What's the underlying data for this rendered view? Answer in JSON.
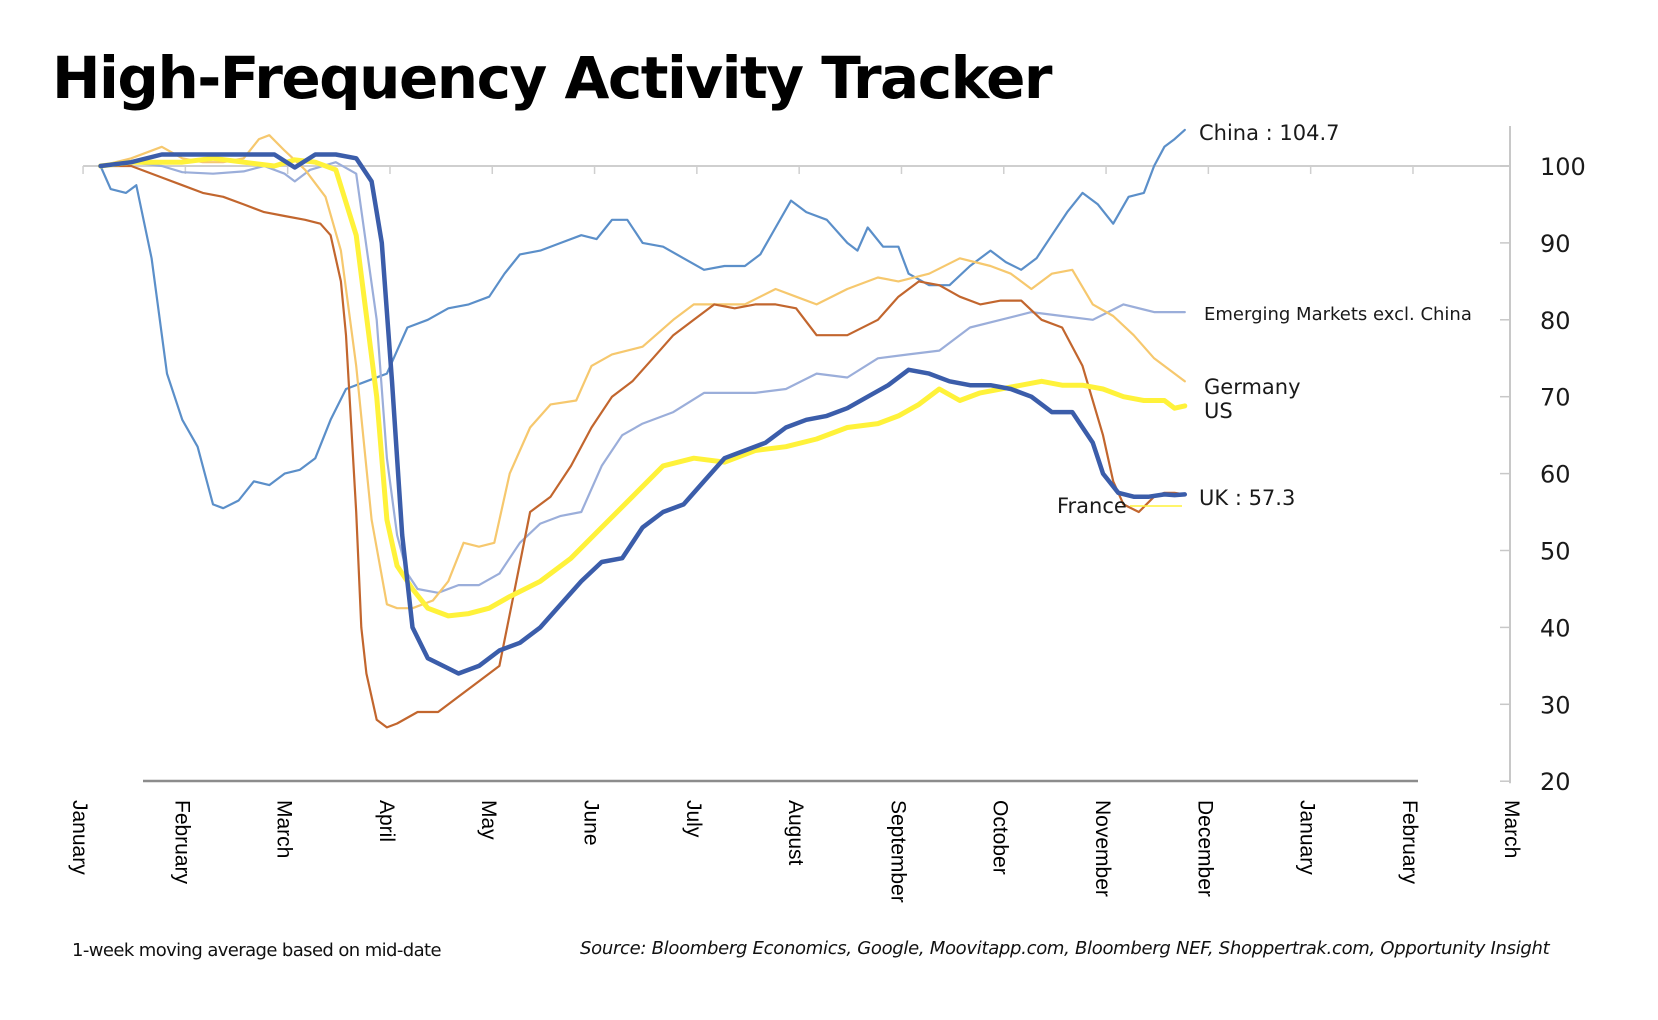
{
  "chart_data": {
    "type": "line",
    "title": "High-Frequency Activity Tracker",
    "xlabel": "",
    "ylabel": "",
    "x_unit": "months since start of January (0 = January)",
    "x_ticks": [
      "January",
      "February",
      "March",
      "April",
      "May",
      "June",
      "July",
      "August",
      "September",
      "October",
      "November",
      "December",
      "January",
      "February",
      "March"
    ],
    "xlim": [
      0,
      14
    ],
    "ylim": [
      20,
      100
    ],
    "y_ticks": [
      20,
      30,
      40,
      50,
      60,
      70,
      80,
      90,
      100
    ],
    "y_axis_position": "right",
    "baseline": 100,
    "grid": false,
    "legend": "inline-labels at line ends (right)",
    "series": [
      {
        "name": "China",
        "label": "China : 104.7",
        "color": "#5B8FC9",
        "width": 2.2,
        "x": [
          0.2,
          0.3,
          0.45,
          0.55,
          0.7,
          0.85,
          1.0,
          1.15,
          1.3,
          1.4,
          1.55,
          1.7,
          1.85,
          2.0,
          2.15,
          2.3,
          2.45,
          2.6,
          2.8,
          3.0,
          3.1,
          3.2,
          3.4,
          3.6,
          3.8,
          4.0,
          4.15,
          4.3,
          4.5,
          4.7,
          4.9,
          5.05,
          5.2,
          5.35,
          5.5,
          5.7,
          5.9,
          6.1,
          6.3,
          6.5,
          6.65,
          6.8,
          6.95,
          7.1,
          7.3,
          7.5,
          7.6,
          7.7,
          7.85,
          8.0,
          8.1,
          8.3,
          8.5,
          8.7,
          8.9,
          9.05,
          9.2,
          9.35,
          9.5,
          9.65,
          9.8,
          9.95,
          10.1,
          10.25,
          10.4,
          10.5,
          10.6,
          10.7,
          10.8
        ],
        "values": [
          100,
          97,
          96.5,
          97.5,
          88,
          73,
          67,
          63.5,
          56,
          55.5,
          56.5,
          59,
          58.5,
          60,
          60.5,
          62,
          67,
          71,
          72,
          73,
          76,
          79,
          80,
          81.5,
          82,
          83,
          86,
          88.5,
          89,
          90,
          91,
          90.5,
          93,
          93,
          90,
          89.5,
          88,
          86.5,
          87,
          87,
          88.5,
          92,
          95.5,
          94,
          93,
          90,
          89,
          92,
          89.5,
          89.5,
          86,
          84.5,
          84.5,
          87,
          89,
          87.5,
          86.5,
          88,
          91,
          94,
          96.5,
          95,
          92.5,
          96,
          96.5,
          100,
          102.5,
          103.5,
          104.7
        ]
      },
      {
        "name": "Emerging Markets excl. China",
        "label": "Emerging Markets excl. China",
        "color": "#9BAEDA",
        "width": 2.2,
        "x": [
          0.2,
          0.5,
          0.8,
          1.0,
          1.3,
          1.6,
          1.8,
          2.0,
          2.1,
          2.25,
          2.5,
          2.7,
          2.9,
          3.0,
          3.1,
          3.2,
          3.3,
          3.5,
          3.7,
          3.9,
          4.1,
          4.3,
          4.5,
          4.7,
          4.9,
          5.1,
          5.3,
          5.5,
          5.8,
          6.1,
          6.3,
          6.6,
          6.9,
          7.2,
          7.5,
          7.8,
          8.1,
          8.4,
          8.7,
          9.0,
          9.3,
          9.6,
          9.9,
          10.2,
          10.5,
          10.7,
          10.8
        ],
        "values": [
          100,
          100.5,
          100,
          99.2,
          99,
          99.3,
          100,
          99,
          98,
          99.5,
          100.5,
          99,
          80,
          62,
          52,
          47,
          45,
          44.5,
          45.5,
          45.5,
          47,
          51,
          53.5,
          54.5,
          55,
          61,
          65,
          66.5,
          68,
          70.5,
          70.5,
          70.5,
          71,
          73,
          72.5,
          75,
          75.5,
          76,
          79,
          80,
          81,
          80.5,
          80,
          82,
          81,
          81,
          81
        ]
      },
      {
        "name": "Germany",
        "label": "Germany",
        "color": "#F6C86E",
        "width": 2.2,
        "x": [
          0.2,
          0.5,
          0.8,
          1.0,
          1.2,
          1.4,
          1.6,
          1.75,
          1.85,
          2.0,
          2.2,
          2.4,
          2.55,
          2.7,
          2.85,
          3.0,
          3.1,
          3.25,
          3.45,
          3.6,
          3.75,
          3.9,
          4.05,
          4.2,
          4.4,
          4.6,
          4.85,
          5.0,
          5.2,
          5.5,
          5.8,
          6.0,
          6.2,
          6.5,
          6.8,
          7.0,
          7.2,
          7.5,
          7.8,
          8.0,
          8.3,
          8.6,
          8.9,
          9.1,
          9.3,
          9.5,
          9.7,
          9.9,
          10.1,
          10.3,
          10.5,
          10.7,
          10.8
        ],
        "values": [
          100,
          101,
          102.5,
          101,
          100.5,
          100.5,
          101,
          103.5,
          104,
          102,
          99.5,
          96,
          89,
          74,
          54,
          43,
          42.5,
          42.5,
          43.5,
          46,
          51,
          50.5,
          51,
          60,
          66,
          69,
          69.5,
          74,
          75.5,
          76.5,
          80,
          82,
          82,
          82,
          84,
          83,
          82,
          84,
          85.5,
          85,
          86,
          88,
          87,
          86,
          84,
          86,
          86.5,
          82,
          80.5,
          78,
          75,
          73,
          72
        ]
      },
      {
        "name": "France",
        "label": "France",
        "color": "#C2662E",
        "width": 2.2,
        "x": [
          0.2,
          0.5,
          0.8,
          1.0,
          1.2,
          1.4,
          1.6,
          1.8,
          2.0,
          2.2,
          2.35,
          2.45,
          2.55,
          2.6,
          2.7,
          2.75,
          2.8,
          2.9,
          3.0,
          3.1,
          3.3,
          3.5,
          3.7,
          3.9,
          4.1,
          4.25,
          4.4,
          4.6,
          4.8,
          5.0,
          5.2,
          5.4,
          5.6,
          5.8,
          6.0,
          6.2,
          6.4,
          6.6,
          6.8,
          7.0,
          7.2,
          7.5,
          7.8,
          8.0,
          8.2,
          8.4,
          8.6,
          8.8,
          9.0,
          9.2,
          9.4,
          9.6,
          9.8,
          10.0,
          10.1,
          10.2,
          10.35,
          10.5,
          10.6,
          10.7,
          10.8
        ],
        "values": [
          100,
          100,
          98.5,
          97.5,
          96.5,
          96,
          95,
          94,
          93.5,
          93,
          92.5,
          91,
          85,
          78,
          55,
          40,
          34,
          28,
          27,
          27.5,
          29,
          29,
          31,
          33,
          35,
          45,
          55,
          57,
          61,
          66,
          70,
          72,
          75,
          78,
          80,
          82,
          81.5,
          82,
          82,
          81.5,
          78,
          78,
          80,
          83,
          85,
          84.5,
          83,
          82,
          82.5,
          82.5,
          80,
          79,
          74,
          65,
          59,
          56,
          55,
          57,
          57.5,
          57.5,
          57.3
        ]
      },
      {
        "name": "US",
        "label": "US",
        "color": "#FFF23A",
        "width": 5,
        "x": [
          0.2,
          0.5,
          0.8,
          1.0,
          1.3,
          1.6,
          1.9,
          2.1,
          2.3,
          2.5,
          2.7,
          2.9,
          3.0,
          3.1,
          3.25,
          3.4,
          3.6,
          3.8,
          4.0,
          4.2,
          4.5,
          4.8,
          5.1,
          5.4,
          5.7,
          6.0,
          6.3,
          6.6,
          6.9,
          7.2,
          7.5,
          7.8,
          8.0,
          8.2,
          8.4,
          8.6,
          8.8,
          9.0,
          9.2,
          9.4,
          9.6,
          9.8,
          10.0,
          10.2,
          10.4,
          10.6,
          10.7,
          10.8
        ],
        "values": [
          100,
          100.5,
          100.5,
          100.5,
          101,
          100.5,
          100,
          100.8,
          100.5,
          99.5,
          91,
          70,
          54,
          48,
          45,
          42.5,
          41.5,
          41.8,
          42.5,
          44,
          46,
          49,
          53,
          57,
          61,
          62,
          61.5,
          63,
          63.5,
          64.5,
          66,
          66.5,
          67.5,
          69,
          71,
          69.5,
          70.5,
          71,
          71.5,
          72,
          71.5,
          71.5,
          71,
          70,
          69.5,
          69.5,
          68.5,
          68.8
        ]
      },
      {
        "name": "UK",
        "label": "UK : 57.3",
        "color": "#3B5DAA",
        "width": 4.5,
        "x": [
          0.2,
          0.5,
          0.8,
          1.0,
          1.2,
          1.5,
          1.9,
          2.1,
          2.3,
          2.5,
          2.7,
          2.85,
          2.95,
          3.05,
          3.15,
          3.25,
          3.4,
          3.55,
          3.7,
          3.9,
          4.1,
          4.3,
          4.5,
          4.7,
          4.9,
          5.1,
          5.3,
          5.5,
          5.7,
          5.9,
          6.1,
          6.3,
          6.5,
          6.7,
          6.9,
          7.1,
          7.3,
          7.5,
          7.7,
          7.9,
          8.1,
          8.3,
          8.5,
          8.7,
          8.9,
          9.1,
          9.3,
          9.5,
          9.7,
          9.9,
          10.0,
          10.15,
          10.3,
          10.45,
          10.6,
          10.7,
          10.8
        ],
        "values": [
          100,
          100.5,
          101.5,
          101.5,
          101.5,
          101.5,
          101.5,
          99.8,
          101.5,
          101.5,
          101,
          98,
          90,
          72,
          52,
          40,
          36,
          35,
          34,
          35,
          37,
          38,
          40,
          43,
          46,
          48.5,
          49,
          53,
          55,
          56,
          59,
          62,
          63,
          64,
          66,
          67,
          67.5,
          68.5,
          70,
          71.5,
          73.5,
          73,
          72,
          71.5,
          71.5,
          71,
          70,
          68,
          68,
          64,
          60,
          57.5,
          57,
          57,
          57.3,
          57.2,
          57.3
        ]
      }
    ],
    "annotations": [
      {
        "text": "France",
        "anchor_series": "France",
        "note": "label placed left of line end with thin leader line"
      }
    ]
  },
  "labels": {
    "title": "High-Frequency Activity Tracker",
    "note": "1-week moving average based on mid-date",
    "source": "Source: Bloomberg Economics, Google, Moovitapp.com, Bloomberg NEF, Shoppertrak.com,  Opportunity  Insight",
    "series": {
      "china": "China : 104.7",
      "em": "Emerging Markets excl. China",
      "germany": "Germany",
      "us": "US",
      "uk": "UK : 57.3",
      "france": "France"
    }
  }
}
